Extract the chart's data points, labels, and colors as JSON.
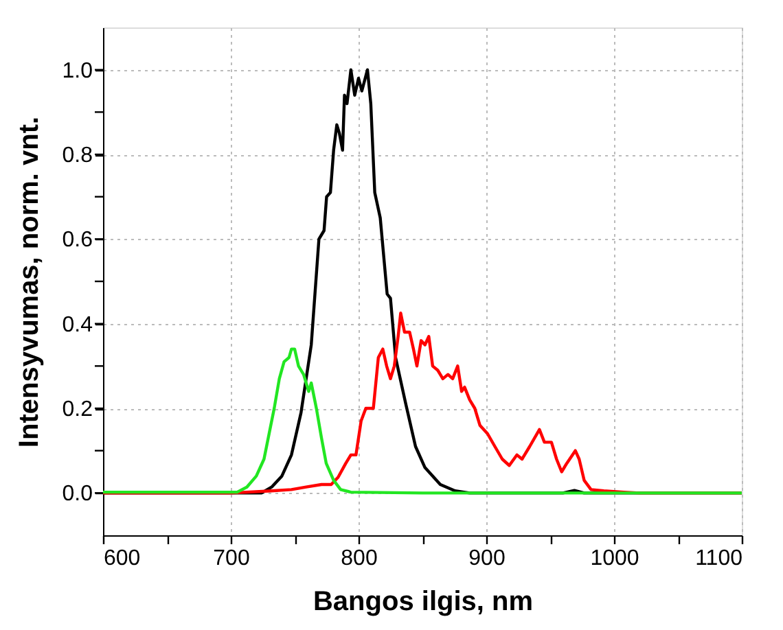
{
  "chart_data": {
    "type": "line",
    "xlabel": "Bangos ilgis, nm",
    "ylabel": "Intensyvumas, norm. vnt.",
    "xlim": [
      600,
      1100
    ],
    "ylim": [
      -0.1,
      1.1
    ],
    "xticks": [
      600,
      {
        "value": 650,
        "label": null
      },
      700,
      {
        "value": 750,
        "label": null
      },
      800,
      {
        "value": 850,
        "label": null
      },
      900,
      {
        "value": 950,
        "label": null
      },
      1000,
      {
        "value": 1050,
        "label": null
      },
      1100
    ],
    "yticks": [
      {
        "value": 0,
        "label": "0.0"
      },
      {
        "value": 0.1,
        "label": null
      },
      {
        "value": 0.2,
        "label": "0.2"
      },
      {
        "value": 0.3,
        "label": null
      },
      {
        "value": 0.4,
        "label": "0.4"
      },
      {
        "value": 0.5,
        "label": null
      },
      {
        "value": 0.6,
        "label": "0.6"
      },
      {
        "value": 0.7,
        "label": null
      },
      {
        "value": 0.8,
        "label": "0.8"
      },
      {
        "value": 0.9,
        "label": null
      },
      {
        "value": 1.0,
        "label": "1.0"
      }
    ],
    "grid": true,
    "marker": "none",
    "line_style": "solid",
    "series": [
      {
        "color": "#000000",
        "x": [
          600,
          700,
          724,
          732,
          740,
          747.5,
          755,
          763,
          769,
          773,
          775,
          778,
          780.5,
          783,
          785,
          787.5,
          789,
          791,
          794,
          797,
          800,
          802.6,
          807,
          809.6,
          812.7,
          817,
          822.4,
          825,
          829,
          837,
          844.6,
          852,
          864,
          875.6,
          887,
          960,
          969,
          976.6,
          1100
        ],
        "values": [
          0,
          0,
          0,
          0.014,
          0.04,
          0.09,
          0.19,
          0.35,
          0.6,
          0.62,
          0.7,
          0.71,
          0.81,
          0.87,
          0.85,
          0.81,
          0.94,
          0.92,
          1.0,
          0.94,
          0.98,
          0.95,
          1.0,
          0.92,
          0.71,
          0.65,
          0.47,
          0.46,
          0.32,
          0.21,
          0.11,
          0.06,
          0.02,
          0.005,
          0,
          0,
          0.006,
          0,
          0
        ]
      },
      {
        "color": "#ff0000",
        "x": [
          600,
          700,
          732,
          747.5,
          759,
          771,
          778.6,
          784,
          790,
          794,
          798,
          802,
          805.7,
          811.6,
          815.5,
          819,
          822,
          825,
          828,
          831,
          833,
          836,
          840,
          843,
          845.7,
          849,
          852,
          855,
          858,
          862,
          866,
          870,
          873.7,
          877.6,
          880.7,
          883,
          887,
          891,
          895,
          901,
          906.7,
          912.5,
          918,
          924,
          928,
          934,
          941.6,
          945.5,
          951,
          955,
          959,
          963,
          969.7,
          972.7,
          976.6,
          982,
          992,
          1007.6,
          1020,
          1100
        ],
        "values": [
          0,
          0,
          0.005,
          0.008,
          0.014,
          0.02,
          0.02,
          0.037,
          0.07,
          0.09,
          0.09,
          0.17,
          0.2,
          0.2,
          0.32,
          0.34,
          0.3,
          0.27,
          0.3,
          0.37,
          0.425,
          0.38,
          0.38,
          0.34,
          0.3,
          0.36,
          0.35,
          0.37,
          0.3,
          0.29,
          0.27,
          0.28,
          0.27,
          0.3,
          0.24,
          0.25,
          0.22,
          0.2,
          0.16,
          0.14,
          0.11,
          0.08,
          0.065,
          0.09,
          0.08,
          0.11,
          0.15,
          0.12,
          0.12,
          0.08,
          0.05,
          0.07,
          0.1,
          0.08,
          0.03,
          0.008,
          0.005,
          0.002,
          0,
          0
        ]
      },
      {
        "color": "#22e622",
        "x": [
          600,
          700,
          705,
          712.6,
          720,
          726,
          730,
          734,
          738,
          741.7,
          745.6,
          747.5,
          750,
          753,
          757,
          761,
          763,
          767,
          771,
          774.7,
          780.5,
          786,
          794,
          850,
          1100
        ],
        "values": [
          0.002,
          0.002,
          0.002,
          0.014,
          0.04,
          0.08,
          0.14,
          0.2,
          0.27,
          0.31,
          0.32,
          0.34,
          0.34,
          0.3,
          0.28,
          0.24,
          0.26,
          0.2,
          0.13,
          0.07,
          0.03,
          0.008,
          0.002,
          0,
          0
        ]
      }
    ]
  }
}
